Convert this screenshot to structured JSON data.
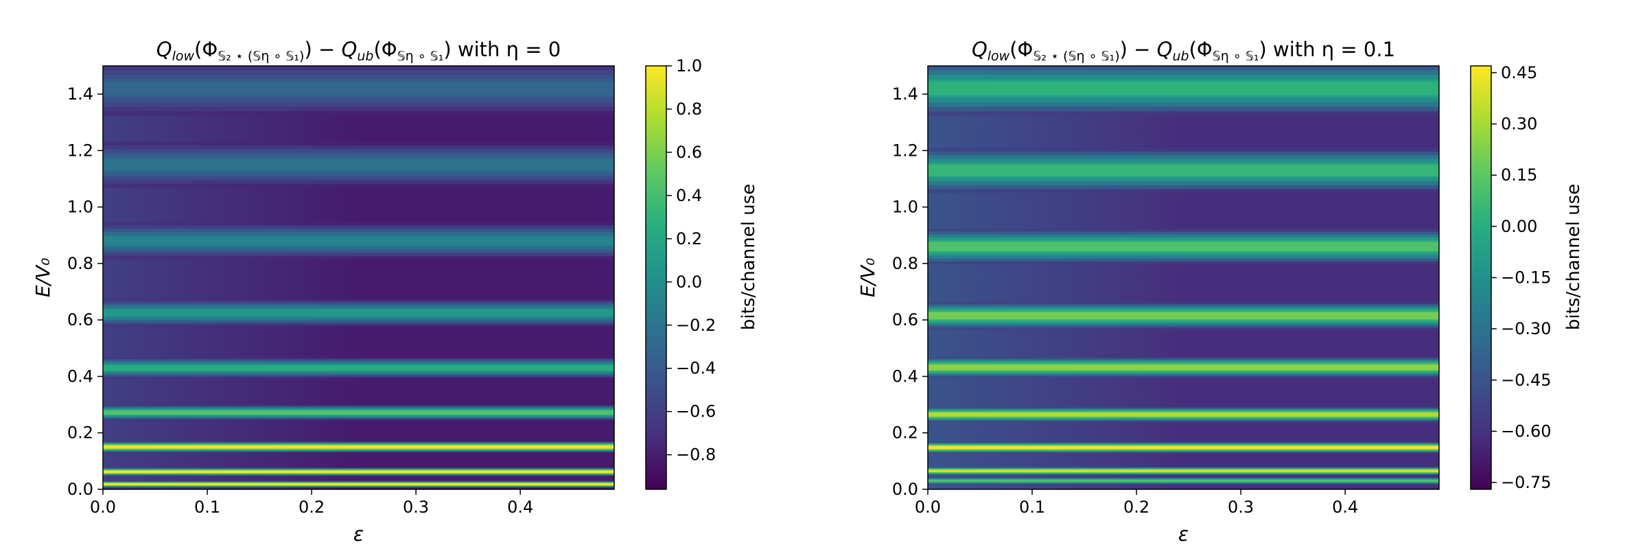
{
  "chart_data": [
    {
      "type": "heatmap",
      "title": {
        "q_low": "Q",
        "q_low_sub": "low",
        "phi1_sub": "𝕊₂ ⋆ (𝕊η ∘ 𝕊₁)",
        "minus": " − ",
        "q_ub": "Q",
        "q_ub_sub": "ub",
        "phi2_sub": "𝕊η ∘ 𝕊₁",
        "with_text": " with η = 0"
      },
      "xlabel": "ε",
      "ylabel": "E/V₀",
      "colorbar_label": "bits/channel use",
      "xlim": [
        0.0,
        0.49
      ],
      "ylim": [
        0.0,
        1.5
      ],
      "xticks": [
        "0.0",
        "0.1",
        "0.2",
        "0.3",
        "0.4"
      ],
      "yticks": [
        "0.0",
        "0.2",
        "0.4",
        "0.6",
        "0.8",
        "1.0",
        "1.2",
        "1.4"
      ],
      "colorbar_range": [
        -0.96,
        1.0
      ],
      "colorbar_ticks": [
        "1.0",
        "0.8",
        "0.6",
        "0.4",
        "0.2",
        "0.0",
        "−0.2",
        "−0.4",
        "−0.6",
        "−0.8"
      ],
      "background_value": -0.82,
      "background_value_at_eps0": -0.6,
      "bands": [
        {
          "E": 0.018,
          "value": 0.95
        },
        {
          "E": 0.062,
          "value": 0.98
        },
        {
          "E": 0.15,
          "value": 0.95
        },
        {
          "E": 0.272,
          "value": 0.45
        },
        {
          "E": 0.43,
          "value": 0.25
        },
        {
          "E": 0.625,
          "value": 0.1
        },
        {
          "E": 0.88,
          "value": -0.08
        },
        {
          "E": 1.15,
          "value": -0.22
        },
        {
          "E": 1.42,
          "value": -0.32
        }
      ]
    },
    {
      "type": "heatmap",
      "title": {
        "q_low": "Q",
        "q_low_sub": "low",
        "phi1_sub": "𝕊₂ ⋆ (𝕊η ∘ 𝕊₁)",
        "minus": " − ",
        "q_ub": "Q",
        "q_ub_sub": "ub",
        "phi2_sub": "𝕊η ∘ 𝕊₁",
        "with_text": " with η = 0.1"
      },
      "xlabel": "ε",
      "ylabel": "E/V₀",
      "colorbar_label": "bits/channel use",
      "xlim": [
        0.0,
        0.49
      ],
      "ylim": [
        0.0,
        1.5
      ],
      "xticks": [
        "0.0",
        "0.1",
        "0.2",
        "0.3",
        "0.4"
      ],
      "yticks": [
        "0.0",
        "0.2",
        "0.4",
        "0.6",
        "0.8",
        "1.0",
        "1.2",
        "1.4"
      ],
      "colorbar_range": [
        -0.77,
        0.47
      ],
      "colorbar_ticks": [
        "0.45",
        "0.30",
        "0.15",
        "0.00",
        "−0.15",
        "−0.30",
        "−0.45",
        "−0.60",
        "−0.75"
      ],
      "background_value": -0.62,
      "background_value_at_eps0": -0.45,
      "bands": [
        {
          "E": 0.03,
          "value": 0.12
        },
        {
          "E": 0.065,
          "value": 0.38
        },
        {
          "E": 0.148,
          "value": 0.44
        },
        {
          "E": 0.265,
          "value": 0.32
        },
        {
          "E": 0.432,
          "value": 0.25
        },
        {
          "E": 0.615,
          "value": 0.2
        },
        {
          "E": 0.86,
          "value": 0.12
        },
        {
          "E": 1.13,
          "value": 0.05
        },
        {
          "E": 1.42,
          "value": 0.02
        }
      ]
    }
  ]
}
